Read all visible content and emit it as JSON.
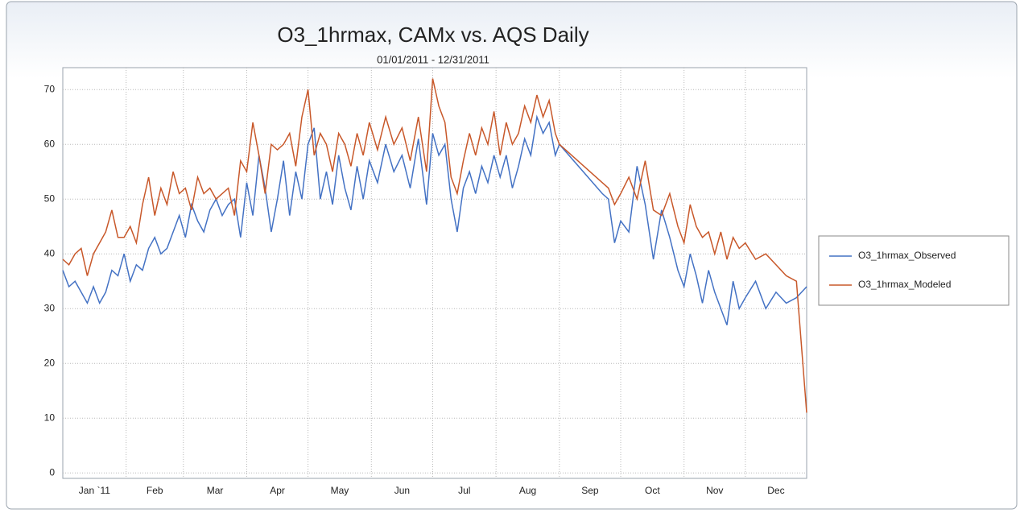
{
  "chart_data": {
    "type": "line",
    "title": "O3_1hrmax, CAMx vs. AQS Daily",
    "subtitle": "01/01/2011 - 12/31/2011",
    "x": [
      1,
      4,
      7,
      10,
      13,
      16,
      19,
      22,
      25,
      28,
      31,
      34,
      37,
      40,
      43,
      46,
      49,
      52,
      55,
      58,
      61,
      64,
      67,
      70,
      73,
      76,
      79,
      82,
      85,
      88,
      91,
      94,
      97,
      100,
      103,
      106,
      109,
      112,
      115,
      118,
      121,
      124,
      127,
      130,
      133,
      136,
      139,
      142,
      145,
      148,
      151,
      155,
      159,
      163,
      167,
      171,
      175,
      179,
      182,
      185,
      188,
      191,
      194,
      197,
      200,
      203,
      206,
      209,
      212,
      215,
      218,
      221,
      224,
      227,
      230,
      233,
      236,
      239,
      242,
      244,
      265,
      268,
      271,
      274,
      278,
      282,
      286,
      290,
      294,
      298,
      302,
      305,
      308,
      311,
      314,
      317,
      320,
      323,
      326,
      329,
      332,
      335,
      340,
      345,
      350,
      355,
      360,
      365
    ],
    "series": [
      {
        "name": "O3_1hrmax_Observed",
        "color": "#4472c4",
        "values": [
          37,
          34,
          35,
          33,
          31,
          34,
          31,
          33,
          37,
          36,
          40,
          35,
          38,
          37,
          41,
          43,
          40,
          41,
          44,
          47,
          43,
          49,
          46,
          44,
          48,
          50,
          47,
          49,
          50,
          43,
          53,
          47,
          58,
          52,
          44,
          50,
          57,
          47,
          55,
          50,
          60,
          63,
          50,
          55,
          49,
          58,
          52,
          48,
          56,
          50,
          57,
          53,
          60,
          55,
          58,
          52,
          61,
          49,
          62,
          58,
          60,
          50,
          44,
          52,
          55,
          51,
          56,
          53,
          58,
          54,
          58,
          52,
          56,
          61,
          58,
          65,
          62,
          64,
          58,
          60,
          51,
          50,
          42,
          46,
          44,
          56,
          49,
          39,
          48,
          43,
          37,
          34,
          40,
          36,
          31,
          37,
          33,
          30,
          27,
          35,
          30,
          32,
          35,
          30,
          33,
          31,
          32,
          34
        ]
      },
      {
        "name": "O3_1hrmax_Modeled",
        "color": "#c8582a",
        "values": [
          39,
          38,
          40,
          41,
          36,
          40,
          42,
          44,
          48,
          43,
          43,
          45,
          42,
          49,
          54,
          47,
          52,
          49,
          55,
          51,
          52,
          48,
          54,
          51,
          52,
          50,
          51,
          52,
          47,
          57,
          55,
          64,
          58,
          51,
          60,
          59,
          60,
          62,
          56,
          65,
          70,
          58,
          62,
          60,
          55,
          62,
          60,
          56,
          62,
          58,
          64,
          59,
          65,
          60,
          63,
          57,
          65,
          55,
          72,
          67,
          64,
          54,
          51,
          57,
          62,
          58,
          63,
          60,
          66,
          58,
          64,
          60,
          62,
          67,
          64,
          69,
          65,
          68,
          62,
          60,
          53,
          52,
          49,
          51,
          54,
          50,
          57,
          48,
          47,
          51,
          45,
          42,
          49,
          45,
          43,
          44,
          40,
          44,
          39,
          43,
          41,
          42,
          39,
          40,
          38,
          36,
          35,
          11
        ]
      }
    ],
    "xlim": [
      1,
      365
    ],
    "xticks": [
      {
        "value": 1,
        "label": "Jan `11"
      },
      {
        "value": 32,
        "label": "Feb"
      },
      {
        "value": 60,
        "label": "Mar"
      },
      {
        "value": 91,
        "label": "Apr"
      },
      {
        "value": 121,
        "label": "May"
      },
      {
        "value": 152,
        "label": "Jun"
      },
      {
        "value": 182,
        "label": "Jul"
      },
      {
        "value": 213,
        "label": "Aug"
      },
      {
        "value": 244,
        "label": "Sep"
      },
      {
        "value": 274,
        "label": "Oct"
      },
      {
        "value": 305,
        "label": "Nov"
      },
      {
        "value": 335,
        "label": "Dec"
      }
    ],
    "ylim": [
      -1,
      74
    ],
    "yticks": [
      0,
      10,
      20,
      30,
      40,
      50,
      60,
      70
    ],
    "grid": true,
    "legend": "right"
  }
}
